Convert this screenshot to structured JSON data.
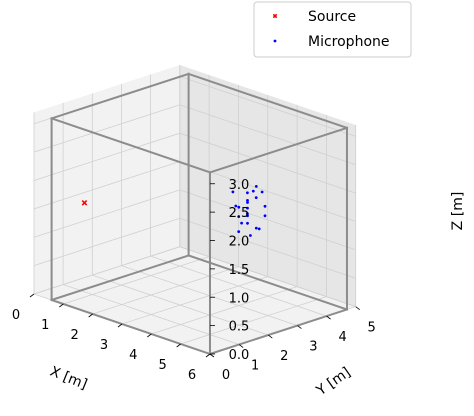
{
  "chart_data": {
    "type": "scatter3d",
    "xlabel": "X [m]",
    "ylabel": "Y [m]",
    "zlabel": "Z [m]",
    "xlim": [
      0,
      6
    ],
    "ylim": [
      0,
      5
    ],
    "zlim": [
      0,
      3.2
    ],
    "x_ticks": [
      "0",
      "1",
      "2",
      "3",
      "4",
      "5",
      "6"
    ],
    "y_ticks": [
      "0",
      "1",
      "2",
      "3",
      "4",
      "5"
    ],
    "z_ticks": [
      "0.0",
      "0.5",
      "1.0",
      "1.5",
      "2.0",
      "2.5",
      "3.0"
    ],
    "grid": true,
    "legend_position": "top-right",
    "room_box": {
      "x": [
        0.6,
        6.0
      ],
      "y": [
        0.0,
        4.7
      ],
      "z": [
        0.0,
        3.2
      ]
    },
    "series": [
      {
        "name": "Source",
        "marker": "x",
        "color": "#ff0000",
        "points": [
          [
            1.72,
            0.0,
            1.91
          ]
        ]
      },
      {
        "name": "Microphone",
        "marker": "dot",
        "color": "#0000ff",
        "points": [
          [
            3.8,
            3.5,
            1.6
          ],
          [
            3.9,
            3.4,
            1.5
          ],
          [
            3.7,
            3.6,
            1.7
          ],
          [
            4.0,
            3.3,
            1.4
          ],
          [
            3.6,
            3.7,
            1.8
          ],
          [
            3.9,
            3.6,
            1.9
          ],
          [
            4.1,
            3.5,
            1.3
          ],
          [
            3.8,
            3.2,
            1.5
          ],
          [
            3.5,
            3.4,
            1.6
          ],
          [
            3.7,
            3.9,
            1.7
          ],
          [
            4.2,
            3.7,
            1.5
          ],
          [
            3.9,
            3.8,
            1.2
          ],
          [
            3.6,
            3.2,
            1.9
          ],
          [
            4.0,
            3.9,
            1.6
          ],
          [
            3.8,
            3.6,
            1.1
          ],
          [
            3.5,
            3.8,
            1.4
          ],
          [
            4.1,
            3.2,
            1.8
          ],
          [
            3.7,
            3.3,
            1.2
          ],
          [
            4.0,
            3.6,
            2.0
          ],
          [
            3.9,
            3.1,
            1.7
          ],
          [
            3.6,
            3.5,
            1.3
          ],
          [
            3.8,
            4.0,
            1.8
          ]
        ]
      }
    ]
  }
}
